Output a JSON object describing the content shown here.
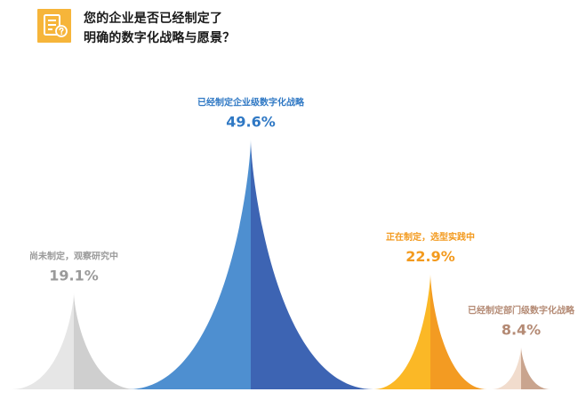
{
  "header": {
    "title_line1": "您的企业是否已经制定了",
    "title_line2": "明确的数字化战略与愿景？",
    "icon": "question-document-icon",
    "icon_color": "#f6b53a"
  },
  "chart_data": {
    "type": "area",
    "title": "您的企业是否已经制定了明确的数字化战略与愿景？",
    "categories": [
      "尚未制定，观察研究中",
      "已经制定企业级数字化战略",
      "正在制定，选型实践中",
      "已经制定部门级数字化战略"
    ],
    "values": [
      19.1,
      49.6,
      22.9,
      8.4
    ],
    "value_labels": [
      "19.1%",
      "49.6%",
      "22.9%",
      "8.4%"
    ],
    "colors": [
      {
        "light": "#e6e6e6",
        "dark": "#cfcfcf",
        "label": "#9a9a9a"
      },
      {
        "light": "#4e8fd0",
        "dark": "#3d64b3",
        "label": "#2f78c4"
      },
      {
        "light": "#fbb826",
        "dark": "#f39b22",
        "label": "#f39a1e"
      },
      {
        "light": "#f1dccd",
        "dark": "#c9a48e",
        "label": "#b48a74"
      }
    ],
    "grid": false,
    "legend": "none"
  }
}
